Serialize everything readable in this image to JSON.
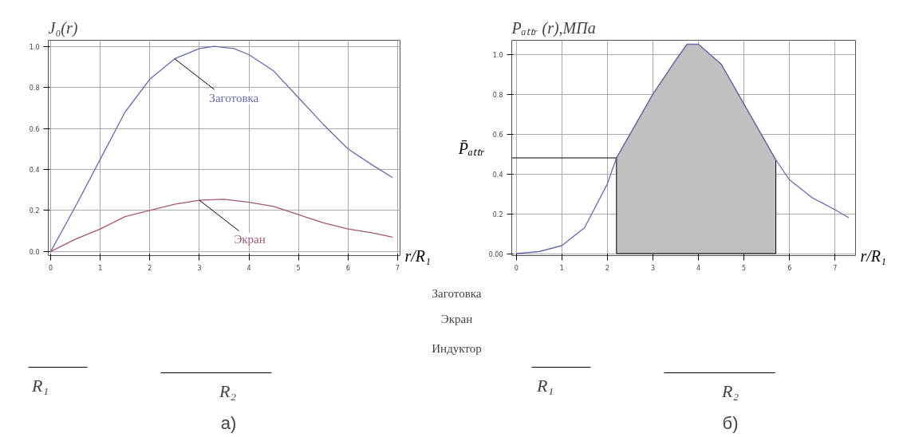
{
  "chart_data": [
    {
      "type": "line",
      "title": "J₀(r)",
      "xlabel": "r/R₁",
      "xlim": [
        -0.05,
        7.05
      ],
      "ylim": [
        -0.02,
        1.03
      ],
      "xticks": [
        0,
        1,
        2,
        3,
        4,
        5,
        6,
        7
      ],
      "yticks": [
        {
          "value": 0,
          "label": "0.0"
        },
        {
          "value": 0.2,
          "label": "0.2"
        },
        {
          "value": 0.4,
          "label": "0.4"
        },
        {
          "value": 0.6,
          "label": "0.6"
        },
        {
          "value": 0.8,
          "label": "0.8"
        },
        {
          "value": 1,
          "label": "1.0"
        }
      ],
      "grid": true,
      "legend": false,
      "series": [
        {
          "name": "Заготовка",
          "color": "#6a6aae",
          "x": [
            0,
            0.5,
            1,
            1.5,
            2,
            2.5,
            3,
            3.3,
            3.7,
            4,
            4.5,
            5,
            5.5,
            6,
            6.5,
            6.9
          ],
          "values": [
            0,
            0.22,
            0.45,
            0.68,
            0.84,
            0.94,
            0.99,
            1.0,
            0.99,
            0.96,
            0.88,
            0.75,
            0.62,
            0.5,
            0.42,
            0.36
          ]
        },
        {
          "name": "Экран",
          "color": "#a05a6e",
          "x": [
            0,
            0.5,
            1,
            1.5,
            2,
            2.5,
            3,
            3.5,
            4,
            4.5,
            5,
            5.5,
            6,
            6.5,
            6.9
          ],
          "values": [
            0,
            0.06,
            0.11,
            0.17,
            0.2,
            0.23,
            0.25,
            0.255,
            0.24,
            0.22,
            0.18,
            0.14,
            0.11,
            0.09,
            0.07
          ]
        }
      ]
    },
    {
      "type": "line",
      "title": "Pₐₜₜᵣ (r),МПа",
      "xlabel": "r/R₁",
      "xlim": [
        -0.1,
        7.45
      ],
      "ylim": [
        -0.01,
        1.07
      ],
      "xticks": [
        0,
        1,
        2,
        3,
        4,
        5,
        6,
        7
      ],
      "yticks": [
        {
          "value": 0,
          "label": "0.00"
        },
        {
          "value": 0.2,
          "label": "0.2"
        },
        {
          "value": 0.4,
          "label": "0.4"
        },
        {
          "value": 0.6,
          "label": "0.6"
        },
        {
          "value": 0.8,
          "label": "0.8"
        },
        {
          "value": 1,
          "label": "1.0"
        }
      ],
      "grid": true,
      "legend": false,
      "series": [
        {
          "type": "area",
          "color": "#c0c0c0",
          "x": [
            2.2,
            2.5,
            3,
            3.5,
            3.75,
            4,
            4.5,
            5,
            5.5,
            5.7
          ],
          "values": [
            0.48,
            0.6,
            0.8,
            0.97,
            1.05,
            1.05,
            0.95,
            0.75,
            0.55,
            0.47
          ]
        },
        {
          "color": "#6a6aae",
          "x": [
            0,
            0.5,
            1,
            1.5,
            2,
            2.2,
            2.5,
            3,
            3.5,
            3.75,
            4,
            4.5,
            5,
            5.5,
            5.7,
            6,
            6.5,
            7,
            7.3
          ],
          "values": [
            0,
            0.01,
            0.04,
            0.13,
            0.35,
            0.48,
            0.6,
            0.8,
            0.97,
            1.05,
            1.05,
            0.95,
            0.75,
            0.55,
            0.47,
            0.37,
            0.28,
            0.22,
            0.18
          ]
        }
      ],
      "ref_lines": [
        {
          "axis": "y",
          "value": 0.48,
          "label": "P̄ₐₜₜᵣ",
          "color": "#000000"
        }
      ]
    },
    {
      "type": "other",
      "annotations": [
        "Заготовка",
        "Экран",
        "Индуктор",
        "R₁",
        "R₂",
        "R₁",
        "R₂",
        "а)",
        "б)"
      ]
    }
  ]
}
